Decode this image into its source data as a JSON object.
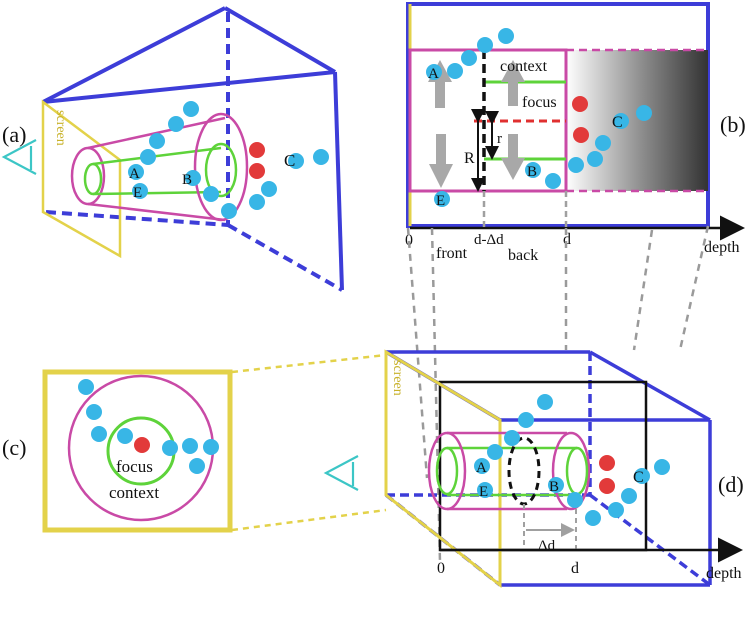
{
  "panels": {
    "a": "(a)",
    "b": "(b)",
    "c": "(c)",
    "d": "(d)"
  },
  "points": {
    "A": "A",
    "B": "B",
    "C": "C",
    "E": "E"
  },
  "labels": {
    "screen": "screen",
    "context": "context",
    "focus": "focus",
    "R": "R",
    "r": "r",
    "zero": "0",
    "d_minus_delta_d": "d-Δd",
    "d": "d",
    "depth": "depth",
    "front": "front",
    "back": "back",
    "delta_d": "Δd"
  },
  "colors": {
    "frustum": "#3d3dd8",
    "screen": "#e3d24a",
    "context_ring": "#c94aa6",
    "focus_ring": "#5ed33a",
    "point": "#38b6e6",
    "focus_point": "#e23a3a",
    "eye": "#3cc6c6",
    "guide": "#9a9a9a",
    "cut": "#e03030"
  }
}
